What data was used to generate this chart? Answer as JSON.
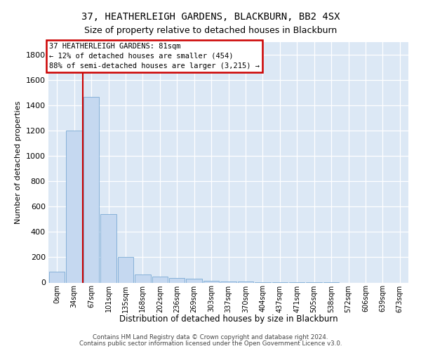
{
  "title1": "37, HEATHERLEIGH GARDENS, BLACKBURN, BB2 4SX",
  "title2": "Size of property relative to detached houses in Blackburn",
  "xlabel": "Distribution of detached houses by size in Blackburn",
  "ylabel": "Number of detached properties",
  "bar_color": "#c5d8f0",
  "bar_edge_color": "#7aaad4",
  "background_color": "#dce8f5",
  "categories": [
    "0sqm",
    "34sqm",
    "67sqm",
    "101sqm",
    "135sqm",
    "168sqm",
    "202sqm",
    "236sqm",
    "269sqm",
    "303sqm",
    "337sqm",
    "370sqm",
    "404sqm",
    "437sqm",
    "471sqm",
    "505sqm",
    "538sqm",
    "572sqm",
    "606sqm",
    "639sqm",
    "673sqm"
  ],
  "values": [
    88,
    1200,
    1470,
    540,
    205,
    65,
    47,
    35,
    28,
    15,
    10,
    8,
    5,
    3,
    2,
    1,
    1,
    0,
    0,
    0,
    0
  ],
  "ylim": [
    0,
    1900
  ],
  "yticks": [
    0,
    200,
    400,
    600,
    800,
    1000,
    1200,
    1400,
    1600,
    1800
  ],
  "vline_pos": 1.5,
  "annotation_title": "37 HEATHERLEIGH GARDENS: 81sqm",
  "annotation_line1": "← 12% of detached houses are smaller (454)",
  "annotation_line2": "88% of semi-detached houses are larger (3,215) →",
  "annotation_box_color": "#ffffff",
  "annotation_border_color": "#cc0000",
  "vline_color": "#cc0000",
  "footer1": "Contains HM Land Registry data © Crown copyright and database right 2024.",
  "footer2": "Contains public sector information licensed under the Open Government Licence v3.0."
}
